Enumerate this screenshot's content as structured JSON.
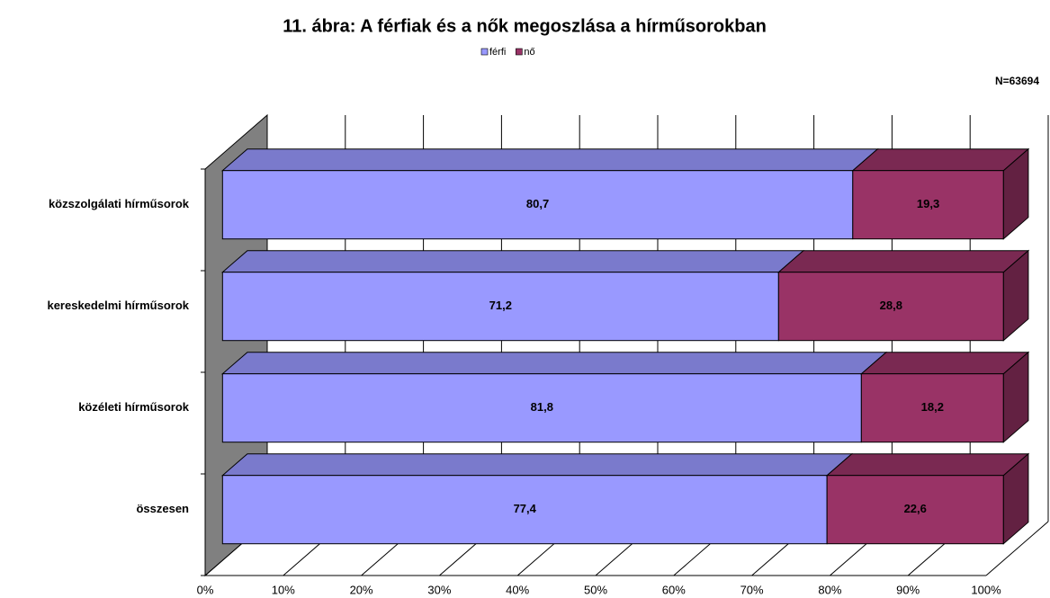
{
  "chart_data": {
    "type": "bar",
    "orientation": "horizontal",
    "stacked": true,
    "title": "11. ábra: A férfiak és a nők megoszlása a hírműsorokban",
    "annotation": "N=63694",
    "categories": [
      "közszolgálati hírműsorok",
      "kereskedelmi hírműsorok",
      "közéleti hírműsorok",
      "összesen"
    ],
    "series": [
      {
        "name": "férfi",
        "color": "#9999ff",
        "values": [
          80.7,
          71.2,
          81.8,
          77.4
        ],
        "value_labels": [
          "80,7",
          "71,2",
          "81,8",
          "77,4"
        ]
      },
      {
        "name": "nő",
        "color": "#993366",
        "values": [
          19.3,
          28.8,
          18.2,
          22.6
        ],
        "value_labels": [
          "19,3",
          "28,8",
          "18,2",
          "22,6"
        ]
      }
    ],
    "xlim": [
      0,
      100
    ],
    "xticks": [
      {
        "value": 0,
        "label": "0%"
      },
      {
        "value": 10,
        "label": "10%"
      },
      {
        "value": 20,
        "label": "20%"
      },
      {
        "value": 30,
        "label": "30%"
      },
      {
        "value": 40,
        "label": "40%"
      },
      {
        "value": 50,
        "label": "50%"
      },
      {
        "value": 60,
        "label": "60%"
      },
      {
        "value": 70,
        "label": "70%"
      },
      {
        "value": 80,
        "label": "80%"
      },
      {
        "value": 90,
        "label": "90%"
      },
      {
        "value": 100,
        "label": "100%"
      }
    ],
    "grid": true,
    "legend": "top"
  }
}
